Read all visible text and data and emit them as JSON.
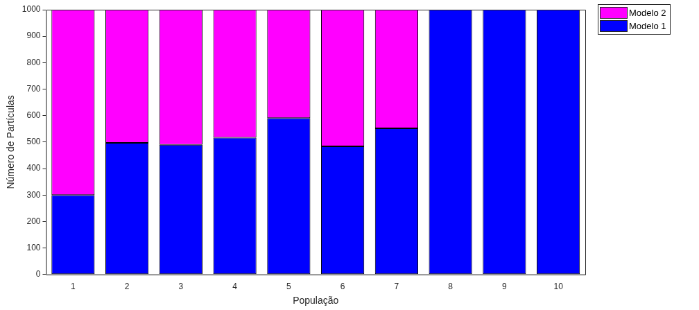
{
  "chart_data": {
    "type": "bar",
    "stacked": true,
    "xlabel": "População",
    "ylabel": "Número de Partículas",
    "categories": [
      "1",
      "2",
      "3",
      "4",
      "5",
      "6",
      "7",
      "8",
      "9",
      "10"
    ],
    "series": [
      {
        "name": "Modelo 1",
        "color": "#0000ff",
        "values": [
          300,
          497,
          490,
          517,
          591,
          484,
          552,
          1000,
          1000,
          1000
        ]
      },
      {
        "name": "Modelo 2",
        "color": "#ff00ff",
        "values": [
          700,
          503,
          510,
          483,
          409,
          516,
          448,
          0,
          0,
          0
        ]
      }
    ],
    "ylim": [
      0,
      1000
    ],
    "yticks": [
      0,
      100,
      200,
      300,
      400,
      500,
      600,
      700,
      800,
      900,
      1000
    ],
    "grid": false,
    "legend": "top right"
  }
}
